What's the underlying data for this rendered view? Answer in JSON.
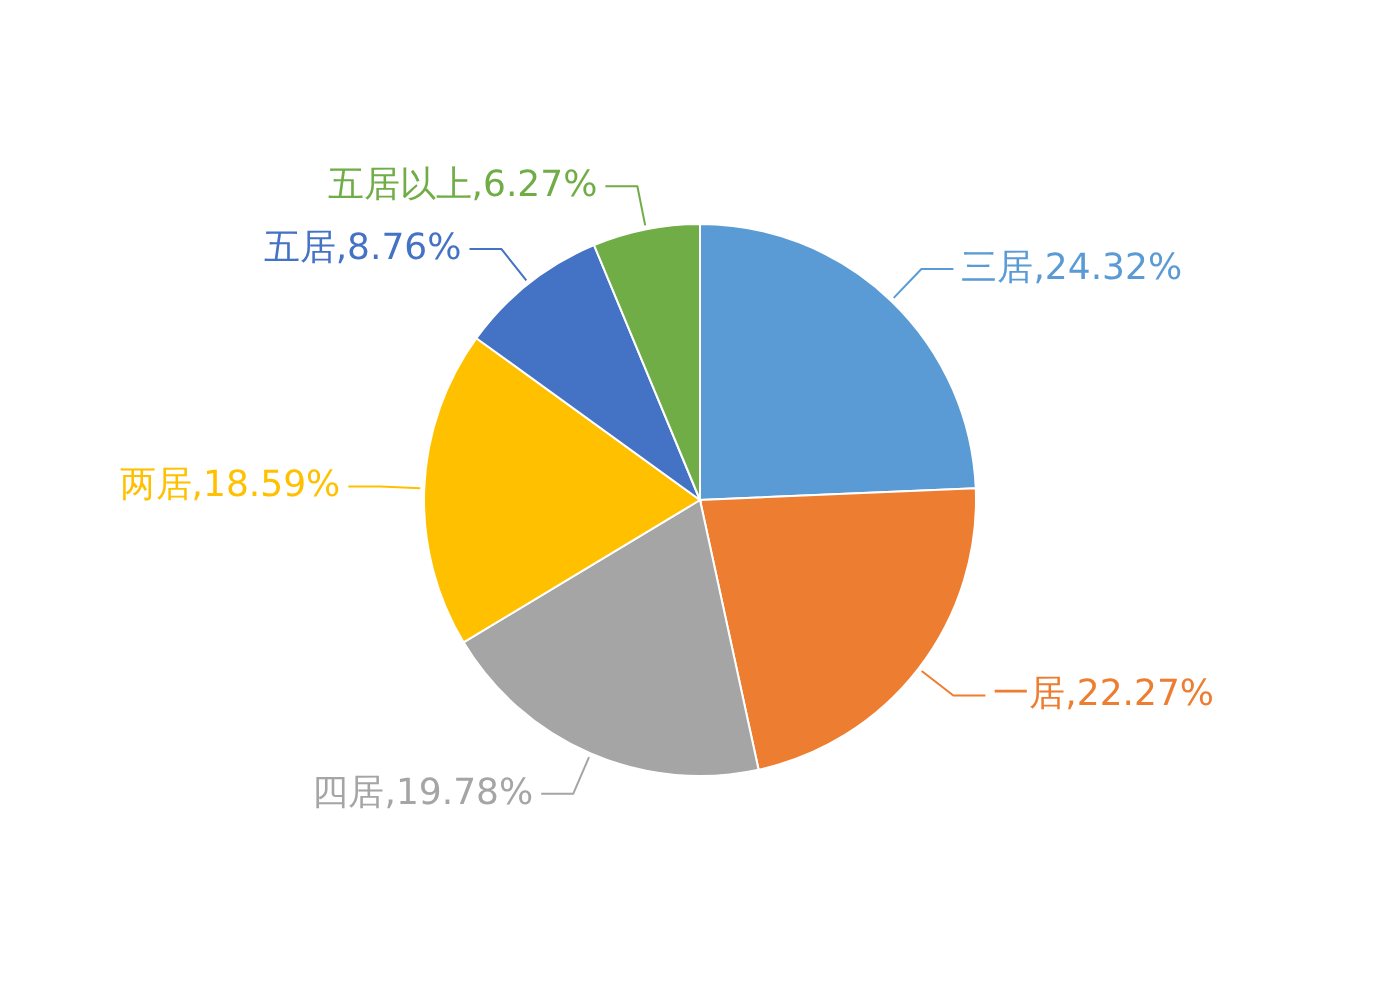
{
  "chart_data": {
    "type": "pie",
    "categories": [
      "三居",
      "一居",
      "四居",
      "两居",
      "五居",
      "五居以上"
    ],
    "values": [
      24.32,
      22.27,
      19.78,
      18.59,
      8.76,
      6.27
    ],
    "colors": [
      "#5b9bd5",
      "#ed7d31",
      "#a5a5a5",
      "#ffc000",
      "#4472c4",
      "#70ad47"
    ],
    "value_labels": [
      "24.32%",
      "22.27%",
      "19.78%",
      "18.59%",
      "8.76%",
      "6.27%"
    ]
  }
}
